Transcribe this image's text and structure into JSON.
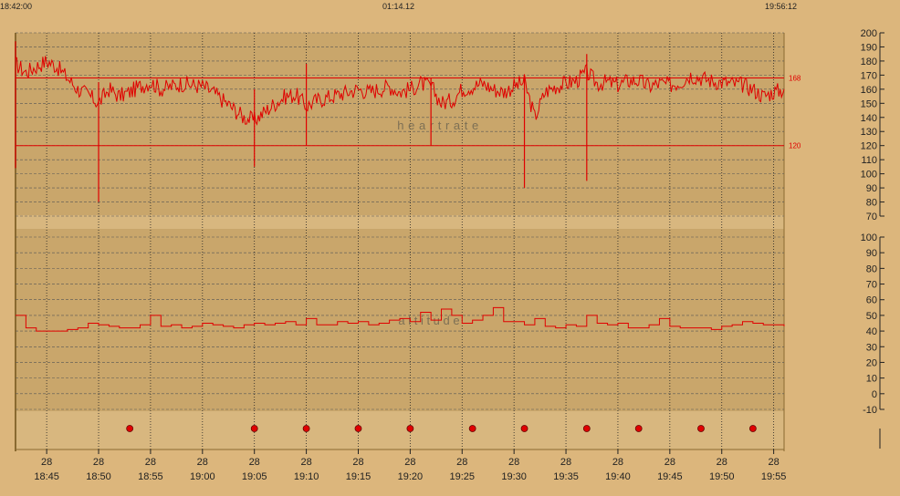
{
  "header": {
    "start_time": "18:42:00",
    "duration": "01:14.12",
    "end_time": "19:56:12"
  },
  "colors": {
    "background": "#dcb67c",
    "plot_fill": "#c9a66b",
    "plot_fill_light": "#d8b77f",
    "signal": "#e00000",
    "grid": "#555555",
    "marker": "#e00000"
  },
  "chart_data": [
    {
      "type": "line",
      "panel": "heart rate",
      "watermark": "h e a r t   r a t e",
      "x_unit": "time",
      "xlim": [
        "18:42",
        "19:56"
      ],
      "ylim": [
        70,
        200
      ],
      "yticks": [
        70,
        80,
        90,
        100,
        110,
        120,
        130,
        140,
        150,
        160,
        170,
        180,
        190,
        200
      ],
      "reference_lines": [
        {
          "value": 168,
          "label": "168"
        },
        {
          "value": 120,
          "label": "120"
        }
      ],
      "series": [
        {
          "name": "",
          "x": [
            "18:42",
            "18:43",
            "18:44",
            "18:45",
            "18:46",
            "18:47",
            "18:48",
            "18:49",
            "18:50",
            "18:51",
            "18:52",
            "18:53",
            "18:54",
            "18:55",
            "18:56",
            "18:57",
            "18:58",
            "18:59",
            "19:00",
            "19:01",
            "19:02",
            "19:03",
            "19:04",
            "19:05",
            "19:06",
            "19:07",
            "19:08",
            "19:09",
            "19:10",
            "19:11",
            "19:12",
            "19:13",
            "19:14",
            "19:15",
            "19:16",
            "19:17",
            "19:18",
            "19:19",
            "19:20",
            "19:21",
            "19:22",
            "19:23",
            "19:24",
            "19:25",
            "19:26",
            "19:27",
            "19:28",
            "19:29",
            "19:30",
            "19:31",
            "19:32",
            "19:33",
            "19:34",
            "19:35",
            "19:36",
            "19:37",
            "19:38",
            "19:39",
            "19:40",
            "19:41",
            "19:42",
            "19:43",
            "19:44",
            "19:45",
            "19:46",
            "19:47",
            "19:48",
            "19:49",
            "19:50",
            "19:51",
            "19:52",
            "19:53",
            "19:54",
            "19:55",
            "19:56"
          ],
          "values": [
            178,
            172,
            176,
            180,
            176,
            168,
            160,
            156,
            150,
            160,
            155,
            158,
            162,
            165,
            160,
            162,
            164,
            163,
            162,
            158,
            152,
            146,
            140,
            138,
            144,
            150,
            155,
            156,
            148,
            152,
            154,
            156,
            158,
            160,
            158,
            160,
            162,
            158,
            160,
            164,
            162,
            150,
            152,
            160,
            162,
            164,
            160,
            158,
            162,
            165,
            140,
            158,
            162,
            164,
            166,
            172,
            164,
            165,
            163,
            166,
            166,
            162,
            164,
            163,
            165,
            170,
            168,
            166,
            165,
            164,
            163,
            160,
            155,
            158,
            160
          ],
          "spikes": [
            {
              "x": "18:42",
              "min": 104,
              "max": 194
            },
            {
              "x": "18:50",
              "min": 80,
              "max": 165
            },
            {
              "x": "19:05",
              "min": 105,
              "max": 160
            },
            {
              "x": "19:10",
              "min": 120,
              "max": 178
            },
            {
              "x": "19:22",
              "min": 120,
              "max": 168
            },
            {
              "x": "19:31",
              "min": 90,
              "max": 170
            },
            {
              "x": "19:37",
              "min": 95,
              "max": 185
            }
          ]
        }
      ]
    },
    {
      "type": "line",
      "panel": "altitude",
      "watermark": "a l t i t u d e",
      "x_unit": "time",
      "xlim": [
        "18:42",
        "19:56"
      ],
      "ylim": [
        -10,
        100
      ],
      "yticks": [
        -10,
        0,
        10,
        20,
        30,
        40,
        50,
        60,
        70,
        80,
        90,
        100
      ],
      "series": [
        {
          "name": "",
          "x": [
            "18:42",
            "18:43",
            "18:44",
            "18:45",
            "18:46",
            "18:47",
            "18:48",
            "18:49",
            "18:50",
            "18:51",
            "18:52",
            "18:53",
            "18:54",
            "18:55",
            "18:56",
            "18:57",
            "18:58",
            "18:59",
            "19:00",
            "19:01",
            "19:02",
            "19:03",
            "19:04",
            "19:05",
            "19:06",
            "19:07",
            "19:08",
            "19:09",
            "19:10",
            "19:11",
            "19:12",
            "19:13",
            "19:14",
            "19:15",
            "19:16",
            "19:17",
            "19:18",
            "19:19",
            "19:20",
            "19:21",
            "19:22",
            "19:23",
            "19:24",
            "19:25",
            "19:26",
            "19:27",
            "19:28",
            "19:29",
            "19:30",
            "19:31",
            "19:32",
            "19:33",
            "19:34",
            "19:35",
            "19:36",
            "19:37",
            "19:38",
            "19:39",
            "19:40",
            "19:41",
            "19:42",
            "19:43",
            "19:44",
            "19:45",
            "19:46",
            "19:47",
            "19:48",
            "19:49",
            "19:50",
            "19:51",
            "19:52",
            "19:53",
            "19:54",
            "19:55",
            "19:56"
          ],
          "values": [
            50,
            42,
            40,
            40,
            40,
            41,
            42,
            45,
            44,
            43,
            42,
            42,
            44,
            50,
            43,
            44,
            42,
            43,
            45,
            44,
            43,
            42,
            44,
            45,
            44,
            45,
            46,
            44,
            48,
            44,
            44,
            46,
            45,
            46,
            44,
            45,
            47,
            48,
            46,
            52,
            47,
            54,
            50,
            45,
            47,
            50,
            55,
            46,
            46,
            44,
            48,
            43,
            42,
            44,
            43,
            50,
            45,
            44,
            45,
            42,
            42,
            44,
            48,
            43,
            42,
            42,
            42,
            41,
            43,
            44,
            46,
            45,
            44,
            44,
            43
          ]
        }
      ]
    },
    {
      "type": "scatter",
      "panel": "markers",
      "x": [
        "18:53",
        "19:05",
        "19:10",
        "19:15",
        "19:20",
        "19:26",
        "19:31",
        "19:37",
        "19:42",
        "19:48",
        "19:53"
      ]
    }
  ],
  "x_axis": {
    "ticks": [
      {
        "day": "28",
        "time": "18:45"
      },
      {
        "day": "28",
        "time": "18:50"
      },
      {
        "day": "28",
        "time": "18:55"
      },
      {
        "day": "28",
        "time": "19:00"
      },
      {
        "day": "28",
        "time": "19:05"
      },
      {
        "day": "28",
        "time": "19:10"
      },
      {
        "day": "28",
        "time": "19:15"
      },
      {
        "day": "28",
        "time": "19:20"
      },
      {
        "day": "28",
        "time": "19:25"
      },
      {
        "day": "28",
        "time": "19:30"
      },
      {
        "day": "28",
        "time": "19:35"
      },
      {
        "day": "28",
        "time": "19:40"
      },
      {
        "day": "28",
        "time": "19:45"
      },
      {
        "day": "28",
        "time": "19:50"
      },
      {
        "day": "28",
        "time": "19:55"
      }
    ]
  }
}
